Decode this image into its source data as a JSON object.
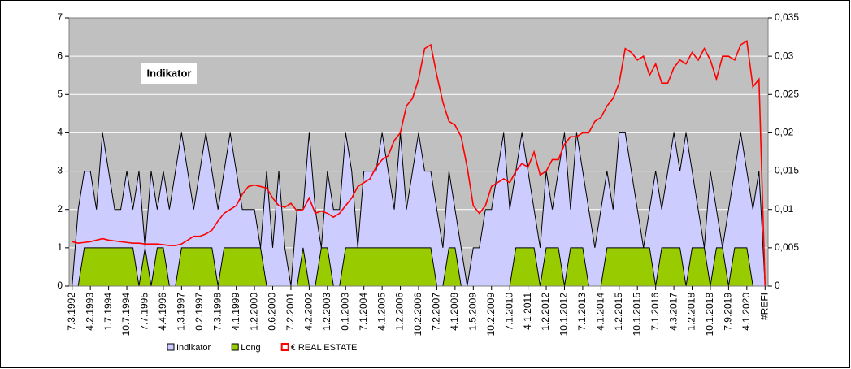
{
  "chart_data": {
    "type": "area-line",
    "title": "Indikator",
    "categories": [
      "7.3.1992",
      null,
      null,
      "4.2.1993",
      null,
      null,
      "1.7.1994",
      null,
      null,
      "10.7.1994",
      null,
      null,
      "7.7.1995",
      null,
      null,
      "4.4.1996",
      null,
      null,
      "1.3.1997",
      null,
      null,
      "0.2.1997",
      null,
      null,
      "7.3.1998",
      null,
      null,
      "4.1.1999",
      null,
      null,
      "1.2.2000",
      null,
      null,
      "0.6.2000",
      null,
      null,
      "7.2.2001",
      null,
      null,
      "4.2.2002",
      null,
      null,
      "1.2.2003",
      null,
      null,
      "0.1.2003",
      null,
      null,
      "7.1.2004",
      null,
      null,
      "4.1.2005",
      null,
      null,
      "1.2.2006",
      null,
      null,
      "10.2.2006",
      null,
      null,
      "7.2.2007",
      null,
      null,
      "4.1.2008",
      null,
      null,
      "1.5.2009",
      null,
      null,
      "10.2.2009",
      null,
      null,
      "7.1.2010",
      null,
      null,
      "4.1.2011",
      null,
      null,
      "1.2.2012",
      null,
      null,
      "10.1.2012",
      null,
      null,
      "7.1.2013",
      null,
      null,
      "4.1.2014",
      null,
      null,
      "1.2.2015",
      null,
      null,
      "10.1.2015",
      null,
      null,
      "7.1.2016",
      null,
      null,
      "4.3.2017",
      null,
      null,
      "1.2.2018",
      null,
      null,
      "10.1.2018",
      null,
      null,
      "7.9.2019",
      null,
      null,
      "4.1.2020",
      null,
      null,
      "#REFI"
    ],
    "series": [
      {
        "name": "Indikator",
        "color": "#ccccff",
        "kind": "area",
        "values": [
          0,
          2,
          3,
          3,
          2,
          4,
          3,
          2,
          2,
          3,
          2,
          3,
          1,
          3,
          2,
          3,
          2,
          3,
          4,
          3,
          2,
          3,
          4,
          3,
          2,
          3,
          4,
          3,
          2,
          2,
          2,
          1,
          3,
          1,
          3,
          1,
          0,
          2,
          2,
          4,
          2,
          1,
          3,
          2,
          2,
          4,
          3,
          1,
          3,
          3,
          3,
          4,
          3,
          2,
          4,
          2,
          3,
          4,
          3,
          3,
          2,
          1,
          3,
          2,
          1,
          0,
          1,
          1,
          2,
          2,
          3,
          4,
          2,
          3,
          4,
          3,
          2,
          1,
          3,
          2,
          3,
          4,
          2,
          4,
          3,
          2,
          1,
          2,
          3,
          2,
          4,
          4,
          3,
          2,
          1,
          2,
          3,
          2,
          3,
          4,
          3,
          4,
          3,
          2,
          1,
          3,
          2,
          1,
          2,
          3,
          4,
          3,
          2,
          3,
          0
        ]
      },
      {
        "name": "Long",
        "color": "#99cc00",
        "kind": "area",
        "values": [
          0,
          0,
          1,
          1,
          1,
          1,
          1,
          1,
          1,
          1,
          1,
          0,
          1,
          0,
          1,
          1,
          0,
          0,
          1,
          1,
          1,
          1,
          1,
          1,
          0,
          1,
          1,
          1,
          1,
          1,
          1,
          1,
          0,
          0,
          0,
          0,
          0,
          0,
          1,
          0,
          0,
          1,
          1,
          0,
          0,
          1,
          1,
          1,
          1,
          1,
          1,
          1,
          1,
          1,
          1,
          1,
          1,
          1,
          1,
          1,
          0,
          0,
          1,
          1,
          0,
          0,
          0,
          0,
          0,
          0,
          0,
          0,
          0,
          1,
          1,
          1,
          1,
          0,
          1,
          1,
          1,
          0,
          1,
          1,
          1,
          0,
          0,
          0,
          1,
          1,
          1,
          1,
          1,
          1,
          1,
          1,
          0,
          1,
          1,
          1,
          1,
          0,
          1,
          1,
          1,
          0,
          1,
          1,
          0,
          1,
          1,
          1,
          0,
          0,
          0
        ]
      },
      {
        "name": "€ REAL ESTATE",
        "color": "#ff0000",
        "kind": "line",
        "axis": "y2",
        "values": [
          0.0058,
          0.0056,
          0.0057,
          0.0058,
          0.006,
          0.0062,
          0.006,
          0.0059,
          0.0058,
          0.0057,
          0.0056,
          0.0056,
          0.0055,
          0.0055,
          0.0055,
          0.0054,
          0.0053,
          0.0053,
          0.0055,
          0.006,
          0.0065,
          0.0065,
          0.0068,
          0.0073,
          0.0085,
          0.0095,
          0.01,
          0.0105,
          0.012,
          0.013,
          0.0132,
          0.013,
          0.0128,
          0.0115,
          0.0105,
          0.0103,
          0.0108,
          0.0098,
          0.01,
          0.0115,
          0.0095,
          0.0098,
          0.0095,
          0.009,
          0.0095,
          0.0105,
          0.0115,
          0.013,
          0.0135,
          0.014,
          0.0155,
          0.0165,
          0.017,
          0.019,
          0.02,
          0.0235,
          0.0245,
          0.027,
          0.031,
          0.0315,
          0.0275,
          0.024,
          0.0215,
          0.021,
          0.0195,
          0.0155,
          0.0105,
          0.0095,
          0.0105,
          0.013,
          0.0135,
          0.014,
          0.0135,
          0.015,
          0.016,
          0.0155,
          0.0175,
          0.0145,
          0.015,
          0.0165,
          0.0165,
          0.0185,
          0.0195,
          0.0195,
          0.02,
          0.02,
          0.0215,
          0.022,
          0.0235,
          0.0245,
          0.0265,
          0.031,
          0.0305,
          0.0295,
          0.03,
          0.0275,
          0.029,
          0.0265,
          0.0265,
          0.0285,
          0.0295,
          0.029,
          0.0305,
          0.0295,
          0.031,
          0.0295,
          0.027,
          0.03,
          0.03,
          0.0295,
          0.0315,
          0.032,
          0.026,
          0.027,
          0
        ]
      }
    ],
    "ylim": [
      0,
      7
    ],
    "yticks": [
      0,
      1,
      2,
      3,
      4,
      5,
      6,
      7
    ],
    "y2lim": [
      0,
      0.035
    ],
    "y2ticks": [
      0,
      {
        "value": 0.005,
        "label": "0,005"
      },
      {
        "value": 0.01,
        "label": "0,01"
      },
      {
        "value": 0.015,
        "label": "0,015"
      },
      {
        "value": 0.02,
        "label": "0,02"
      },
      {
        "value": 0.025,
        "label": "0,025"
      },
      {
        "value": 0.03,
        "label": "0,03"
      },
      {
        "value": 0.035,
        "label": "0,035"
      }
    ],
    "grid": true,
    "legend": "bottom"
  }
}
